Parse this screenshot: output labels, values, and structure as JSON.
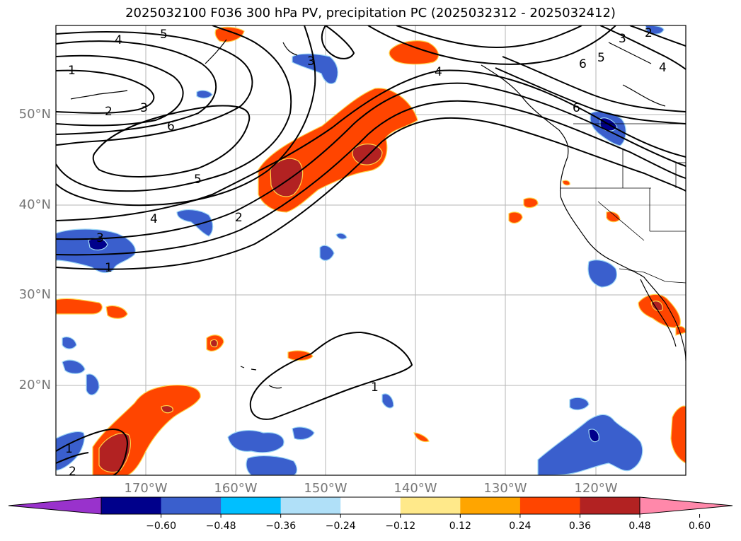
{
  "title": "2025032100 F036 300 hPa PV, precipitation PC (2025032312 - 2025032412)",
  "latitude_labels": [
    "50°N",
    "40°N",
    "30°N",
    "20°N"
  ],
  "longitude_labels": [
    "170°W",
    "160°W",
    "150°W",
    "140°W",
    "130°W",
    "120°W"
  ],
  "contour_labels": [
    "1",
    "2",
    "3",
    "4",
    "5",
    "6"
  ],
  "colorbar": {
    "tick_labels": [
      "−0.60",
      "−0.48",
      "−0.36",
      "−0.24",
      "−0.12",
      "0.12",
      "0.24",
      "0.36",
      "0.48",
      "0.60"
    ],
    "colors": [
      "#9932cc",
      "#00008b",
      "#3a5fcd",
      "#00bfff",
      "#b0e0f8",
      "#ffffff",
      "#ffe98a",
      "#ffa500",
      "#ff4500",
      "#b22222",
      "#ff88aa"
    ]
  }
}
